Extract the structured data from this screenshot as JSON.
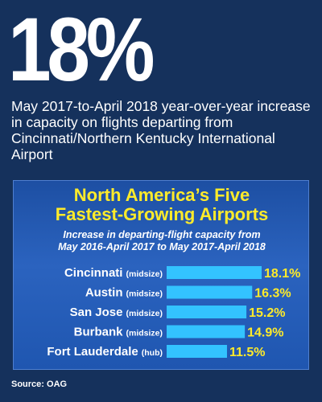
{
  "headline": {
    "value": "18%",
    "description": "May 2017-to-April 2018 year-over-year increase in capacity on flights departing from Cincinnati/Northern Kentucky International Airport"
  },
  "colors": {
    "background": "#15315c",
    "title": "#ffeb2a",
    "bar": "#33c3ff",
    "value_label": "#ffeb2a",
    "text": "#ffffff"
  },
  "chart_data": {
    "type": "bar",
    "orientation": "horizontal",
    "title_line1": "North America’s Five",
    "title_line2": "Fastest-Growing Airports",
    "subtitle_line1": "Increase in departing-flight capacity from",
    "subtitle_line2": "May 2016-April 2017 to May 2017-April 2018",
    "categories": [
      "Cincinnati",
      "Austin",
      "San Jose",
      "Burbank",
      "Fort Lauderdale"
    ],
    "qualifiers": [
      "(midsize)",
      "(midsize)",
      "(midsize)",
      "(midsize)",
      "(hub)"
    ],
    "values": [
      18.1,
      16.3,
      15.2,
      14.9,
      11.5
    ],
    "value_labels": [
      "18.1%",
      "16.3%",
      "15.2%",
      "14.9%",
      "11.5%"
    ],
    "xlim": [
      0,
      18.1
    ],
    "grid": false,
    "legend": "none"
  },
  "source": "Source: OAG"
}
